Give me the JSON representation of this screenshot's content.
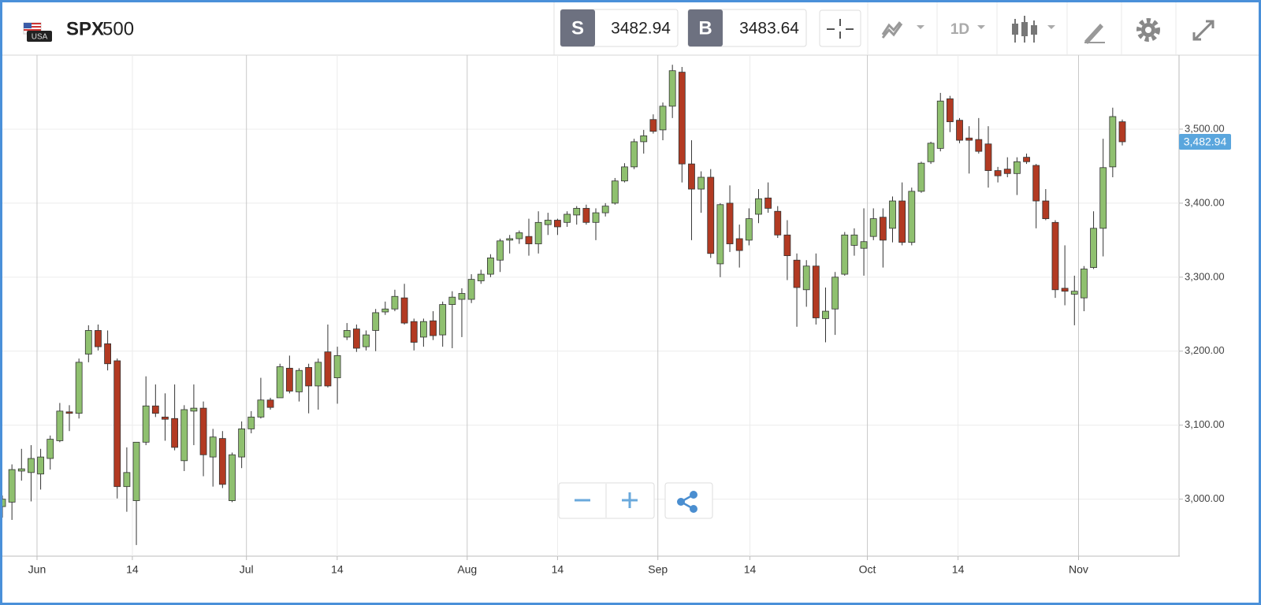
{
  "toolbar": {
    "flag": "USA",
    "symbol_bold": "SPX",
    "symbol_rest": "500",
    "sell_label": "S",
    "sell_price": "3482.94",
    "buy_label": "B",
    "buy_price": "3483.64",
    "timeframe": "1D"
  },
  "chart_data": {
    "type": "candlestick",
    "up_color": "#8fc06f",
    "down_color": "#b23a22",
    "grid": true,
    "categories": [
      null,
      null,
      null,
      null,
      null,
      null,
      null,
      null,
      null,
      null,
      null,
      null,
      null,
      null,
      null,
      null,
      null,
      null,
      null,
      null,
      null,
      null,
      null,
      null,
      null,
      null,
      null,
      null,
      null,
      null,
      null,
      null,
      null,
      null,
      null,
      null,
      null,
      null,
      null,
      null,
      null,
      null,
      null,
      null,
      null,
      null,
      null,
      null,
      null,
      null,
      null,
      null,
      null,
      null,
      null,
      null,
      null,
      null,
      null,
      null,
      null,
      null,
      null,
      null,
      null,
      null,
      null,
      null,
      null,
      null,
      null,
      null,
      null,
      null,
      null,
      null,
      null,
      null,
      null,
      null,
      null,
      null,
      null,
      null,
      null,
      null,
      null,
      null,
      null,
      null,
      null,
      null,
      null,
      null,
      null,
      null,
      null,
      null,
      null,
      null,
      null,
      null,
      null,
      null,
      null,
      null,
      null,
      null,
      null,
      null,
      null,
      null,
      null,
      null,
      null,
      null,
      null,
      null
    ],
    "open": [
      2990,
      2996,
      3038,
      3036,
      3034,
      3055,
      3079,
      3118,
      3116,
      3196,
      3228,
      3210,
      3187,
      3017,
      2998,
      3077,
      3126,
      3111,
      3109,
      3052,
      3119,
      3123,
      3057,
      3082,
      2998,
      3057,
      3095,
      3111,
      3134,
      3137,
      3177,
      3145,
      3178,
      3153,
      3199,
      3164,
      3219,
      3230,
      3206,
      3228,
      3253,
      3257,
      3272,
      3240,
      3219,
      3241,
      3222,
      3263,
      3270,
      3270,
      3295,
      3304,
      3323,
      3350,
      3352,
      3355,
      3345,
      3371,
      3377,
      3374,
      3384,
      3393,
      3374,
      3387,
      3400,
      3430,
      3449,
      3483,
      3513,
      3499,
      3531,
      3577,
      3453,
      3419,
      3435,
      3318,
      3400,
      3352,
      3350,
      3385,
      3407,
      3389,
      3357,
      3323,
      3283,
      3315,
      3244,
      3257,
      3304,
      3343,
      3339,
      3355,
      3381,
      3366,
      3403,
      3347,
      3416,
      3456,
      3474,
      3541,
      3512,
      3488,
      3486,
      3480,
      3444,
      3446,
      3440,
      3462,
      3451,
      3403,
      3374,
      3285,
      3277,
      3272,
      3313,
      3366,
      3449,
      3510
    ],
    "high": [
      3005,
      3047,
      3068,
      3073,
      3068,
      3086,
      3130,
      3127,
      3190,
      3235,
      3236,
      3228,
      3190,
      3070,
      3077,
      3166,
      3155,
      3143,
      3155,
      3127,
      3155,
      3132,
      3095,
      3092,
      3063,
      3105,
      3119,
      3164,
      3137,
      3183,
      3194,
      3177,
      3183,
      3190,
      3236,
      3206,
      3238,
      3236,
      3228,
      3257,
      3267,
      3283,
      3291,
      3244,
      3244,
      3254,
      3267,
      3281,
      3285,
      3304,
      3310,
      3331,
      3352,
      3357,
      3363,
      3379,
      3389,
      3387,
      3379,
      3389,
      3396,
      3398,
      3393,
      3400,
      3434,
      3454,
      3487,
      3499,
      3520,
      3536,
      3587,
      3584,
      3485,
      3443,
      3446,
      3400,
      3424,
      3371,
      3393,
      3419,
      3428,
      3396,
      3377,
      3332,
      3323,
      3332,
      3286,
      3307,
      3361,
      3366,
      3393,
      3393,
      3393,
      3409,
      3428,
      3421,
      3456,
      3483,
      3549,
      3545,
      3515,
      3504,
      3515,
      3504,
      3449,
      3462,
      3462,
      3467,
      3453,
      3419,
      3377,
      3343,
      3302,
      3315,
      3389,
      3487,
      3529,
      3513
    ],
    "low": [
      2975,
      2972,
      3025,
      2997,
      3013,
      3040,
      3077,
      3092,
      3109,
      3185,
      3201,
      3174,
      3001,
      2983,
      2938,
      3073,
      3111,
      3079,
      3066,
      3038,
      3073,
      3031,
      3017,
      3015,
      2996,
      3042,
      3089,
      3109,
      3121,
      3137,
      3143,
      3132,
      3116,
      3121,
      3151,
      3129,
      3215,
      3199,
      3201,
      3200,
      3249,
      3254,
      3236,
      3201,
      3206,
      3215,
      3206,
      3204,
      3219,
      3265,
      3291,
      3300,
      3307,
      3332,
      3345,
      3329,
      3332,
      3357,
      3357,
      3368,
      3371,
      3371,
      3350,
      3382,
      3398,
      3428,
      3446,
      3467,
      3494,
      3485,
      3515,
      3428,
      3350,
      3387,
      3326,
      3300,
      3334,
      3313,
      3343,
      3373,
      3387,
      3353,
      3296,
      3233,
      3260,
      3236,
      3212,
      3222,
      3302,
      3329,
      3302,
      3350,
      3313,
      3347,
      3343,
      3343,
      3414,
      3453,
      3470,
      3496,
      3481,
      3440,
      3467,
      3421,
      3428,
      3435,
      3411,
      3453,
      3366,
      3377,
      3272,
      3262,
      3235,
      3254,
      3311,
      3328,
      3435,
      3478
    ],
    "close": [
      3000,
      3040,
      3041,
      3055,
      3057,
      3081,
      3119,
      3116,
      3185,
      3228,
      3206,
      3183,
      3017,
      3036,
      3077,
      3126,
      3116,
      3108,
      3070,
      3121,
      3123,
      3060,
      3084,
      3020,
      3060,
      3095,
      3111,
      3134,
      3124,
      3179,
      3146,
      3174,
      3153,
      3185,
      3153,
      3194,
      3228,
      3204,
      3222,
      3252,
      3257,
      3274,
      3238,
      3212,
      3240,
      3221,
      3263,
      3273,
      3278,
      3297,
      3304,
      3326,
      3349,
      3352,
      3360,
      3345,
      3374,
      3377,
      3368,
      3385,
      3393,
      3374,
      3387,
      3396,
      3430,
      3449,
      3483,
      3491,
      3497,
      3531,
      3579,
      3453,
      3419,
      3435,
      3332,
      3398,
      3345,
      3336,
      3379,
      3406,
      3393,
      3357,
      3329,
      3286,
      3315,
      3245,
      3254,
      3300,
      3357,
      3357,
      3348,
      3379,
      3350,
      3403,
      3347,
      3416,
      3454,
      3481,
      3538,
      3510,
      3485,
      3485,
      3470,
      3444,
      3437,
      3440,
      3456,
      3456,
      3403,
      3379,
      3283,
      3281,
      3281,
      3311,
      3366,
      3448,
      3517,
      3482.94
    ],
    "ylim": [
      2923,
      3600
    ],
    "yticks": [
      {
        "value": 3000,
        "label": "3,000.00"
      },
      {
        "value": 3100,
        "label": "3,100.00"
      },
      {
        "value": 3200,
        "label": "3,200.00"
      },
      {
        "value": 3300,
        "label": "3,300.00"
      },
      {
        "value": 3400,
        "label": "3,400.00"
      },
      {
        "value": 3500,
        "label": "3,500.00"
      }
    ],
    "xticks": [
      {
        "value": 3.62,
        "label": "Jun"
      },
      {
        "value": 13.58,
        "label": "14"
      },
      {
        "value": 25.5,
        "label": "Jul"
      },
      {
        "value": 34.98,
        "label": "14"
      },
      {
        "value": 48.56,
        "label": "Aug"
      },
      {
        "value": 58.0,
        "label": "14"
      },
      {
        "value": 68.48,
        "label": "Sep"
      },
      {
        "value": 78.1,
        "label": "14"
      },
      {
        "value": 90.37,
        "label": "Oct"
      },
      {
        "value": 99.84,
        "label": "14"
      },
      {
        "value": 112.43,
        "label": "Nov"
      }
    ],
    "last_price": {
      "value": 3482.94,
      "label": "3,482.94"
    }
  }
}
